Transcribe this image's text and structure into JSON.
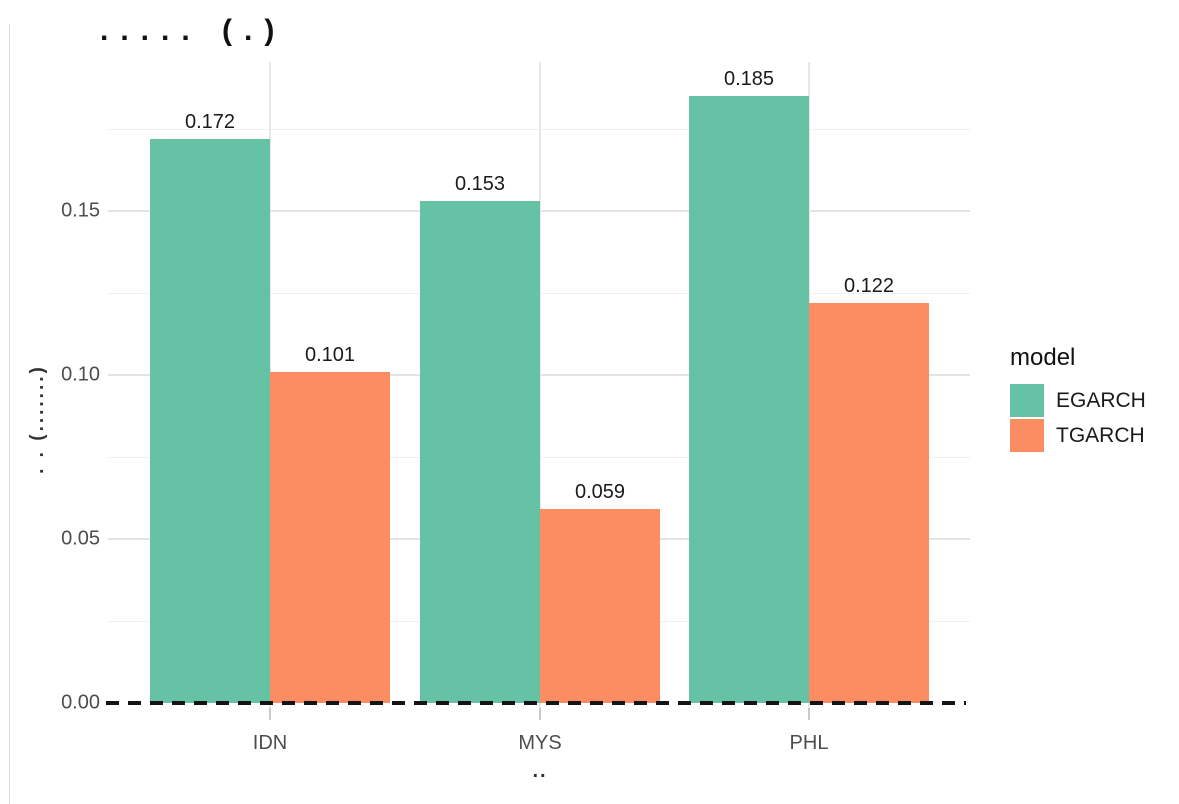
{
  "title": "..... (.)",
  "x_axis": {
    "label": "..",
    "categories": [
      "IDN",
      "MYS",
      "PHL"
    ]
  },
  "y_axis": {
    "label": ". . (.......)",
    "ticks": [
      {
        "label": "0.00",
        "value": 0.0
      },
      {
        "label": "0.05",
        "value": 0.05
      },
      {
        "label": "0.10",
        "value": 0.1
      },
      {
        "label": "0.15",
        "value": 0.15
      }
    ],
    "minor_tick_values": [
      0.025,
      0.075,
      0.125,
      0.175
    ]
  },
  "legend": {
    "title": "model",
    "entries": [
      {
        "label": "EGARCH",
        "color": "#66C2A5"
      },
      {
        "label": "TGARCH",
        "color": "#FC8D62"
      }
    ]
  },
  "zero_line": {
    "style": "dashed",
    "color": "#141414"
  },
  "colors": {
    "egarch": "#66C2A5",
    "tgarch": "#FC8D62",
    "grid_major": "#e4e4e4",
    "grid_minor": "#f1f1f1"
  },
  "chart_data": {
    "type": "bar",
    "title": "..... (.)",
    "xlabel": "..",
    "ylabel": ". . (.......)",
    "categories": [
      "IDN",
      "MYS",
      "PHL"
    ],
    "series": [
      {
        "name": "EGARCH",
        "color": "#66C2A5",
        "values": [
          0.172,
          0.153,
          0.185
        ],
        "value_labels": [
          "0.172",
          "0.153",
          "0.185"
        ]
      },
      {
        "name": "TGARCH",
        "color": "#FC8D62",
        "values": [
          0.101,
          0.059,
          0.122
        ],
        "value_labels": [
          "0.101",
          "0.059",
          "0.122"
        ]
      }
    ],
    "ylim": [
      0,
      0.195
    ],
    "grid": true,
    "legend_position": "right",
    "zero_line_dashed": true
  }
}
